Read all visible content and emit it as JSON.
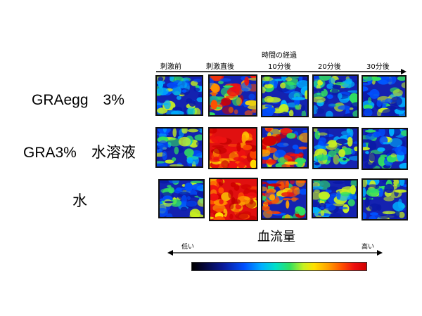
{
  "timeline": {
    "title_line1": "時間の経過",
    "columns": [
      "刺激前",
      "刺激直後",
      "10分後",
      "20分後",
      "30分後"
    ]
  },
  "rows": [
    "GRAegg　3%",
    "GRA3%　水溶液",
    "水"
  ],
  "legend": {
    "title": "血流量",
    "low": "低い",
    "high": "高い"
  },
  "colors": {
    "low": "#000000",
    "mid_low": "#0050ff",
    "mid": "#30e060",
    "mid_high": "#ffe000",
    "high": "#d00000"
  }
}
